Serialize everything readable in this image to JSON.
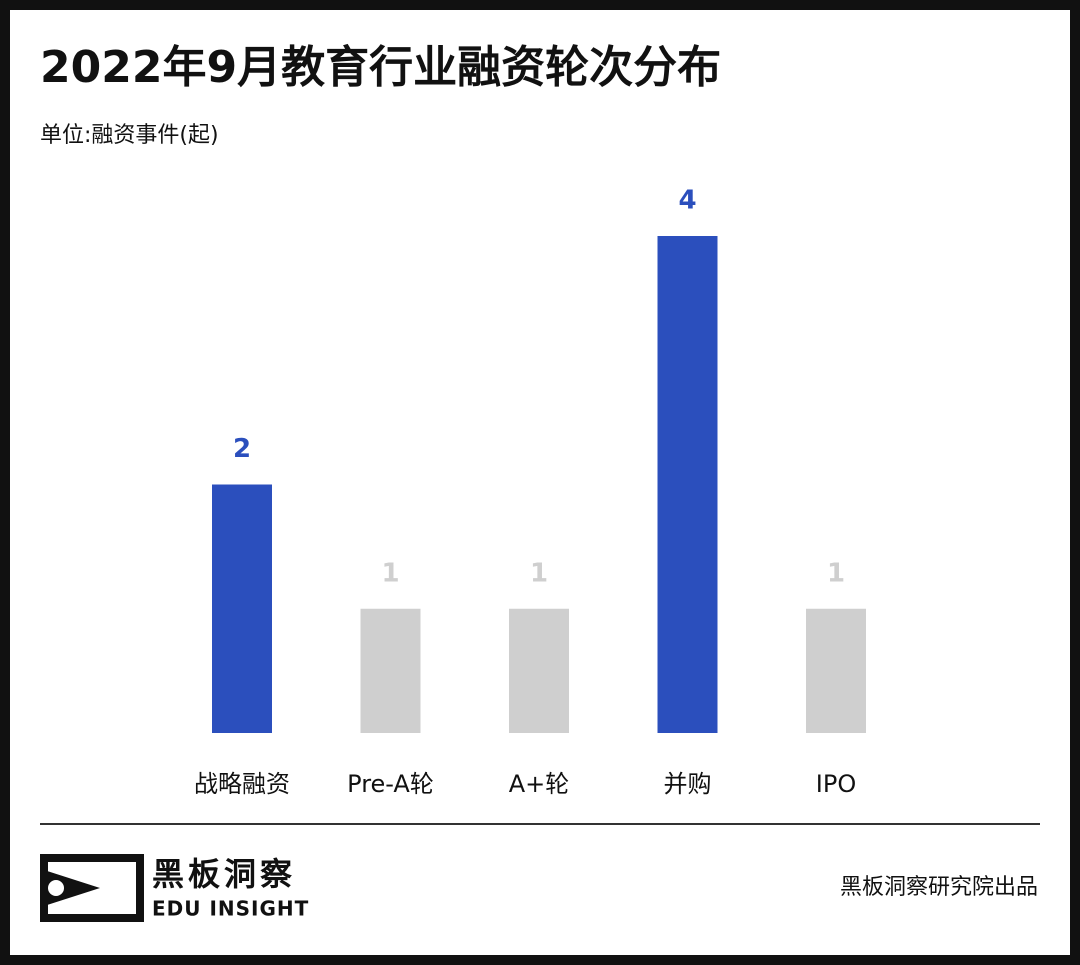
{
  "chart_data": {
    "type": "bar",
    "title": "2022年9月教育行业融资轮次分布",
    "subtitle": "单位:融资事件(起)",
    "categories": [
      "战略融资",
      "Pre-A轮",
      "A+轮",
      "并购",
      "IPO"
    ],
    "values": [
      2,
      1,
      1,
      4,
      1
    ],
    "colors": [
      "#2b4fbd",
      "#cfcfcf",
      "#cfcfcf",
      "#2b4fbd",
      "#cfcfcf"
    ]
  },
  "footer": {
    "brand_cn": "黑板洞察",
    "brand_en": "EDU INSIGHT",
    "credit": "黑板洞察研究院出品"
  }
}
